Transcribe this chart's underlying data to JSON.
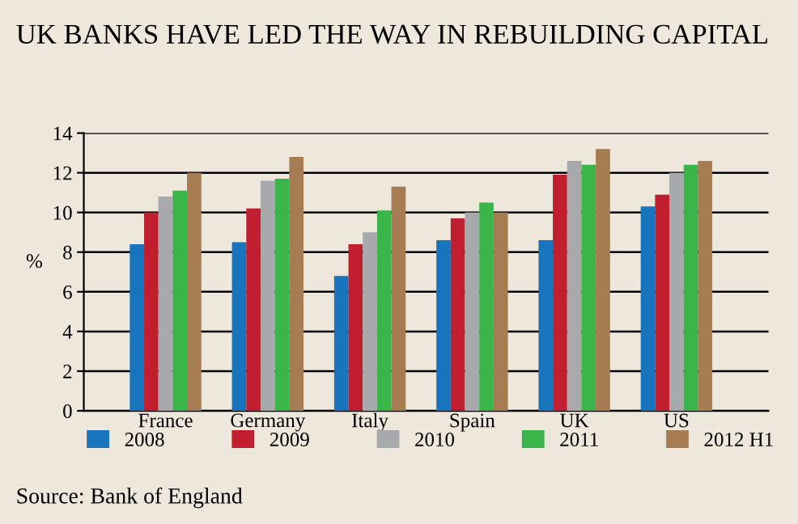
{
  "chart_data": {
    "type": "bar",
    "title": "UK BANKS HAVE LED THE WAY IN REBUILDING CAPITAL",
    "ylabel": "%",
    "categories": [
      "France",
      "Germany",
      "Italy",
      "Spain",
      "UK",
      "US"
    ],
    "series": [
      {
        "name": "2008",
        "color": "#1874bc",
        "values": [
          8.4,
          8.5,
          6.8,
          8.6,
          8.6,
          10.3
        ]
      },
      {
        "name": "2009",
        "color": "#c11f2f",
        "values": [
          10.0,
          10.2,
          8.4,
          9.7,
          11.9,
          10.9
        ]
      },
      {
        "name": "2010",
        "color": "#a7a9ac",
        "values": [
          10.8,
          11.6,
          9.0,
          10.0,
          12.6,
          12.0
        ]
      },
      {
        "name": "2011",
        "color": "#3ab54a",
        "values": [
          11.1,
          11.7,
          10.1,
          10.5,
          12.4,
          12.4
        ]
      },
      {
        "name": "2012 H1",
        "color": "#a67c52",
        "values": [
          12.0,
          12.8,
          11.3,
          10.0,
          13.2,
          12.6
        ]
      }
    ],
    "ylim": [
      0,
      14
    ],
    "yticks": [
      0,
      2,
      4,
      6,
      8,
      10,
      12,
      14
    ],
    "grid": "y",
    "legend": "bottom",
    "annotations": [
      "Source: Bank of England"
    ]
  }
}
